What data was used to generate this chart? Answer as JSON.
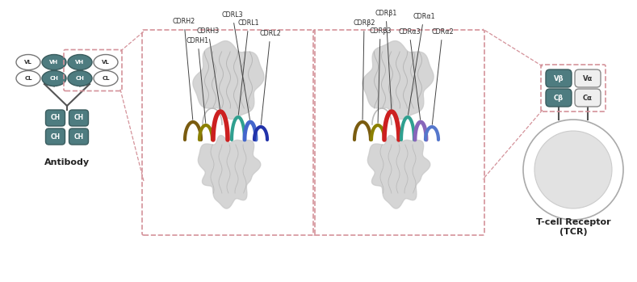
{
  "bg_color": "#ffffff",
  "teal_color": "#4e7c80",
  "light_gray": "#d8d8d8",
  "lighter_gray": "#efefef",
  "white": "#ffffff",
  "antibody_label": "Antibody",
  "tcr_label": "T-cell Receptor\n(TCR)",
  "pink_box_color": "#d4929a",
  "annotation_color": "#333333",
  "ab_cdr_labels": [
    "CDRH2",
    "CDRH3",
    "CDRL3",
    "CDRL1",
    "CDRH1",
    "CDRL2"
  ],
  "tcr_cdr_labels": [
    "CDRβ1",
    "CDRβ2",
    "CDRβ3",
    "CDRα1",
    "CDRα3",
    "CDRα2"
  ]
}
